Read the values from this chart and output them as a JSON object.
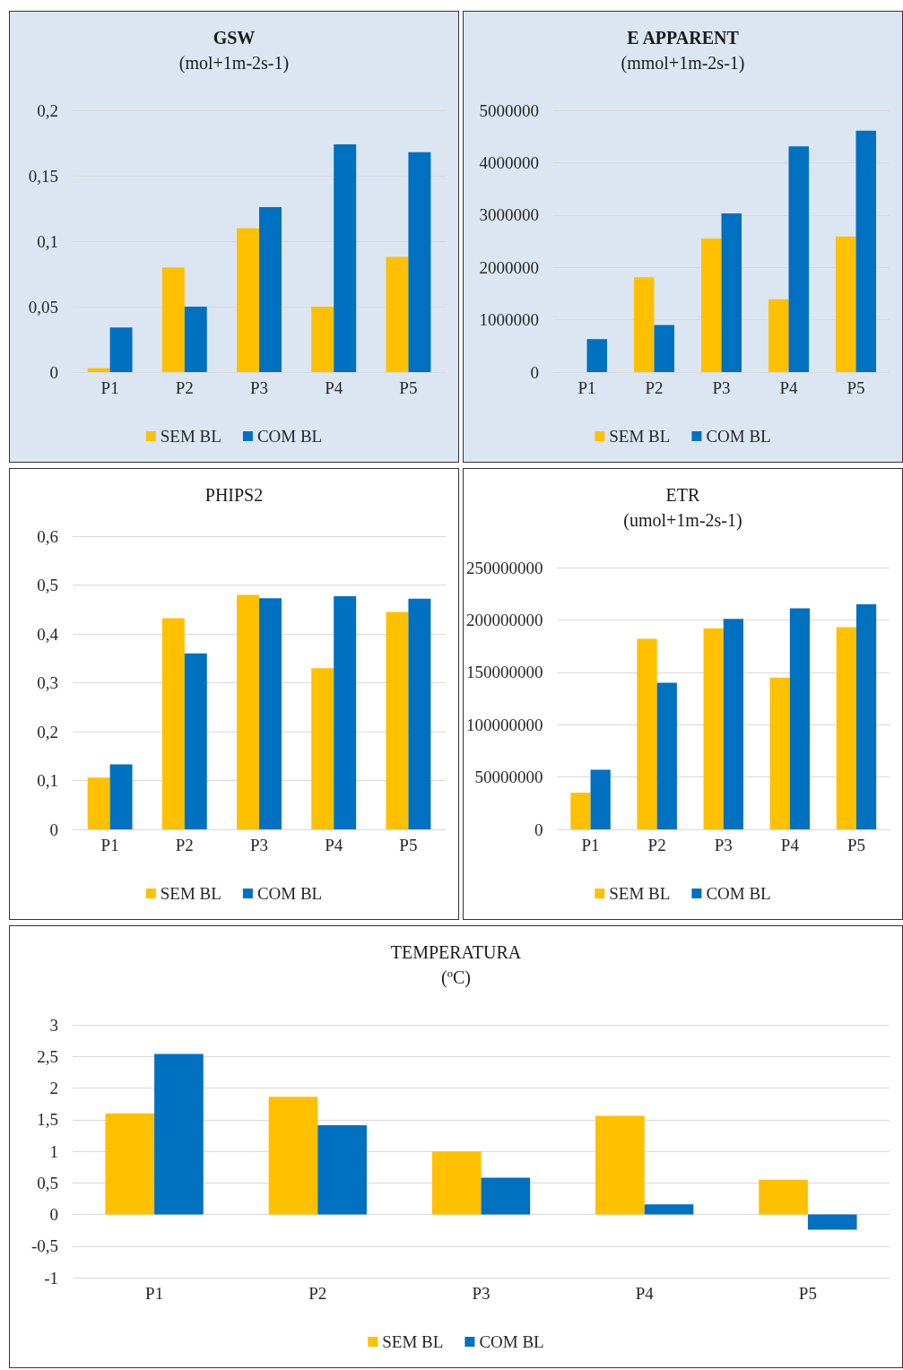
{
  "chart_data": [
    {
      "type": "bar",
      "title": "GSW",
      "subtitle": "(mol+1m-2s-1)",
      "categories": [
        "P1",
        "P2",
        "P3",
        "P4",
        "P5"
      ],
      "series": [
        {
          "name": "SEM BL",
          "color": "#ffc000",
          "values": [
            0.003,
            0.08,
            0.11,
            0.05,
            0.088
          ]
        },
        {
          "name": "COM BL",
          "color": "#0070c0",
          "values": [
            0.034,
            0.05,
            0.126,
            0.174,
            0.168
          ]
        }
      ],
      "ylim": [
        0,
        0.2
      ],
      "yticks": [
        0,
        {
          "value": 0.05,
          "label": "0,05"
        },
        {
          "value": 0.1,
          "label": "0,1"
        },
        {
          "value": 0.15,
          "label": "0,15"
        },
        {
          "value": 0.2,
          "label": "0,2"
        }
      ],
      "grid": "y",
      "legend": "bottom"
    },
    {
      "type": "bar",
      "title": "E APPARENT",
      "subtitle": "(mmol+1m-2s-1)",
      "categories": [
        "P1",
        "P2",
        "P3",
        "P4",
        "P5"
      ],
      "series": [
        {
          "name": "SEM BL",
          "color": "#ffc000",
          "values": [
            0,
            1810000,
            2550000,
            1390000,
            2590000
          ]
        },
        {
          "name": "COM BL",
          "color": "#0070c0",
          "values": [
            630000,
            900000,
            3030000,
            4310000,
            4610000
          ]
        }
      ],
      "ylim": [
        0,
        5000000
      ],
      "yticks": [
        0,
        1000000,
        2000000,
        3000000,
        4000000,
        5000000
      ],
      "grid": "y",
      "legend": "bottom"
    },
    {
      "type": "bar",
      "title": "PHIPS2",
      "categories": [
        "P1",
        "P2",
        "P3",
        "P4",
        "P5"
      ],
      "series": [
        {
          "name": "SEM BL",
          "color": "#ffc000",
          "values": [
            0.106,
            0.432,
            0.48,
            0.33,
            0.445
          ]
        },
        {
          "name": "COM BL",
          "color": "#0070c0",
          "values": [
            0.133,
            0.36,
            0.473,
            0.477,
            0.472
          ]
        }
      ],
      "ylim": [
        0,
        0.6
      ],
      "yticks": [
        0,
        {
          "value": 0.1,
          "label": "0,1"
        },
        {
          "value": 0.2,
          "label": "0,2"
        },
        {
          "value": 0.3,
          "label": "0,3"
        },
        {
          "value": 0.4,
          "label": "0,4"
        },
        {
          "value": 0.5,
          "label": "0,5"
        },
        {
          "value": 0.6,
          "label": "0,6"
        }
      ],
      "grid": "y",
      "legend": "bottom"
    },
    {
      "type": "bar",
      "title": "ETR",
      "subtitle": "(umol+1m-2s-1)",
      "categories": [
        "P1",
        "P2",
        "P3",
        "P4",
        "P5"
      ],
      "series": [
        {
          "name": "SEM BL",
          "color": "#ffc000",
          "values": [
            35000000,
            182000000,
            192000000,
            145000000,
            193000000
          ]
        },
        {
          "name": "COM BL",
          "color": "#0070c0",
          "values": [
            57000000,
            140000000,
            201000000,
            211000000,
            215000000
          ]
        }
      ],
      "ylim": [
        0,
        250000000
      ],
      "yticks": [
        0,
        50000000,
        100000000,
        150000000,
        200000000,
        250000000
      ],
      "grid": "y",
      "legend": "bottom"
    },
    {
      "type": "bar",
      "title": "TEMPERATURA",
      "subtitle": "(ºC)",
      "categories": [
        "P1",
        "P2",
        "P3",
        "P4",
        "P5"
      ],
      "series": [
        {
          "name": "SEM BL",
          "color": "#ffc000",
          "values": [
            1.6,
            1.86,
            1.0,
            1.56,
            0.55
          ]
        },
        {
          "name": "COM BL",
          "color": "#0070c0",
          "values": [
            2.54,
            1.41,
            0.58,
            0.16,
            -0.24
          ]
        }
      ],
      "ylim": [
        -1,
        3
      ],
      "yticks": [
        -1,
        {
          "value": -0.5,
          "label": "-0,5"
        },
        0,
        {
          "value": 0.5,
          "label": "0,5"
        },
        1,
        {
          "value": 1.5,
          "label": "1,5"
        },
        2,
        {
          "value": 2.5,
          "label": "2,5"
        },
        3
      ],
      "grid": "y",
      "legend": "bottom"
    }
  ]
}
